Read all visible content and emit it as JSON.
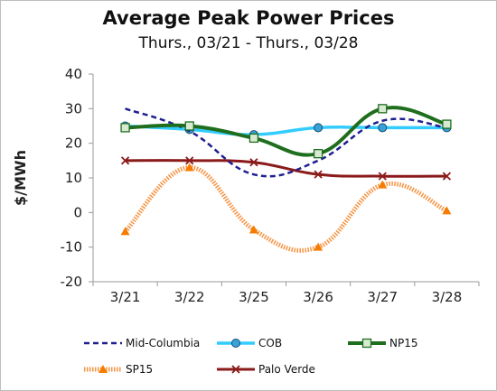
{
  "chart_data": {
    "type": "line",
    "title": "Average Peak Power Prices",
    "subtitle": "Thurs., 03/21 - Thurs., 03/28",
    "xlabel": "",
    "ylabel": "$/MWh",
    "categories": [
      "3/21",
      "3/22",
      "3/25",
      "3/26",
      "3/27",
      "3/28"
    ],
    "ylim": [
      -20,
      40
    ],
    "yticks": [
      -20,
      -10,
      0,
      10,
      20,
      30,
      40
    ],
    "grid": false,
    "legend_position": "bottom",
    "series": [
      {
        "name": "Mid-Columbia",
        "values": [
          30,
          23.5,
          11,
          15,
          26.5,
          24.5
        ],
        "color": "#1f1f8f",
        "style": "dashed",
        "marker": "none"
      },
      {
        "name": "COB",
        "values": [
          25,
          24,
          22.5,
          24.5,
          24.5,
          24.5
        ],
        "color": "#33ccff",
        "style": "solid",
        "marker": "circle"
      },
      {
        "name": "NP15",
        "values": [
          24.5,
          25,
          21.5,
          17,
          30,
          25.5
        ],
        "color": "#1e6e1e",
        "style": "solid",
        "marker": "square"
      },
      {
        "name": "SP15",
        "values": [
          -5.5,
          13,
          -5,
          -10,
          8,
          0.5
        ],
        "color": "#f59342",
        "style": "dotted",
        "marker": "triangle"
      },
      {
        "name": "Palo Verde",
        "values": [
          15,
          15,
          14.5,
          11,
          10.5,
          10.5
        ],
        "color": "#8b1a1a",
        "style": "solid",
        "marker": "x"
      }
    ]
  }
}
